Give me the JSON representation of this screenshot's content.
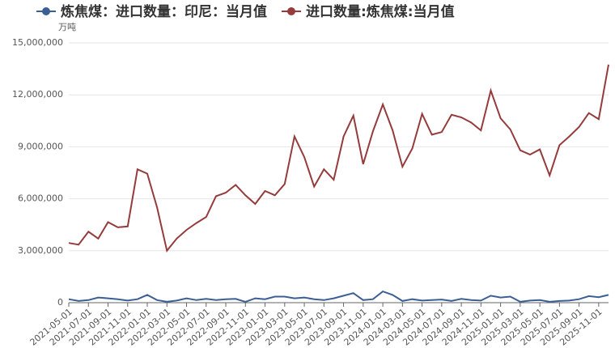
{
  "chart_data": {
    "type": "line",
    "y_label": "万吨",
    "categories": [
      "2021-05-01",
      null,
      "2021-07-01",
      null,
      "2021-09-01",
      null,
      "2021-11-01",
      null,
      "2022-01-01",
      null,
      "2022-03-01",
      null,
      "2022-05-01",
      null,
      "2022-07-01",
      null,
      "2022-09-01",
      null,
      "2022-11-01",
      null,
      "2023-01-01",
      null,
      "2023-03-01",
      null,
      "2023-05-01",
      null,
      "2023-07-01",
      null,
      "2023-09-01",
      null,
      "2023-11-01",
      null,
      "2024-01-01",
      null,
      "2024-03-01",
      null,
      "2024-05-01",
      null,
      "2024-07-01",
      null,
      "2024-09-01",
      null,
      "2024-11-01",
      null,
      "2025-01-01",
      null,
      "2025-03-01",
      null,
      "2025-05-01",
      null,
      "2025-07-01",
      null,
      "2025-09-01",
      null,
      "2025-11-01",
      null
    ],
    "series": [
      {
        "name": "炼焦煤：进口数量：印尼：当月值",
        "color": "#3b5f95",
        "values": [
          0.2,
          0.1,
          0.15,
          0.3,
          0.25,
          0.2,
          0.12,
          0.2,
          0.45,
          0.15,
          0.05,
          0.12,
          0.25,
          0.15,
          0.22,
          0.15,
          0.2,
          0.22,
          0.05,
          0.25,
          0.2,
          0.35,
          0.35,
          0.25,
          0.3,
          0.2,
          0.15,
          0.25,
          0.4,
          0.55,
          0.15,
          0.2,
          0.65,
          0.45,
          0.1,
          0.2,
          0.12,
          0.15,
          0.18,
          0.1,
          0.22,
          0.15,
          0.12,
          0.4,
          0.3,
          0.35,
          0.05,
          0.12,
          0.15,
          0.05,
          0.1,
          0.12,
          0.2,
          0.38,
          0.32,
          0.45
        ]
      },
      {
        "name": "进口数量:炼焦煤:当月值",
        "color": "#953b3b",
        "values": [
          3.45,
          3.35,
          4.1,
          3.7,
          4.65,
          4.35,
          4.4,
          7.7,
          7.45,
          5.5,
          3.0,
          3.7,
          4.2,
          4.6,
          4.95,
          6.15,
          6.35,
          6.8,
          6.2,
          5.7,
          6.45,
          6.2,
          6.85,
          9.6,
          8.4,
          6.7,
          7.7,
          7.1,
          9.6,
          10.8,
          8.0,
          9.9,
          11.45,
          9.95,
          7.85,
          8.9,
          10.9,
          9.7,
          9.85,
          10.85,
          10.7,
          10.4,
          9.95,
          12.25,
          10.65,
          10.0,
          8.8,
          8.55,
          8.85,
          7.35,
          9.1,
          9.6,
          10.15,
          10.95,
          10.6,
          13.75
        ]
      }
    ],
    "ylim": [
      0,
      15
    ],
    "yticks": [
      {
        "value": 0,
        "label": "0"
      },
      {
        "value": 3,
        "label": "3,000,000"
      },
      {
        "value": 6,
        "label": "6,000,000"
      },
      {
        "value": 9,
        "label": "9,000,000"
      },
      {
        "value": 12,
        "label": "12,000,000"
      },
      {
        "value": 15,
        "label": "15,000,000"
      }
    ],
    "grid": true
  }
}
